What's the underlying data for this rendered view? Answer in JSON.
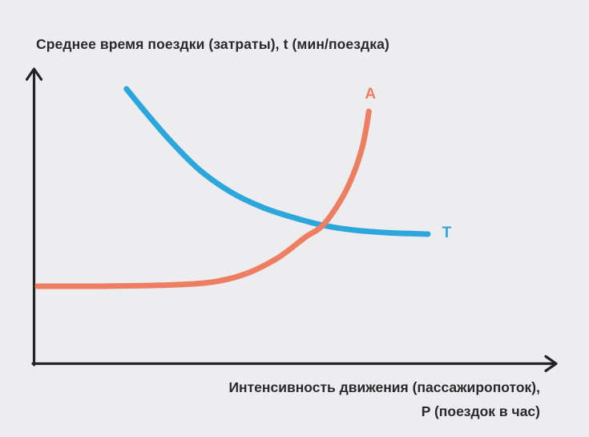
{
  "page": {
    "background": "#EDEDEF"
  },
  "colors": {
    "axis": "#232326",
    "text": "#2A2A2C",
    "curve_T": "#2BA7DD",
    "curve_A": "#EE7E62"
  },
  "chart_data": {
    "type": "line",
    "title": "Среднее время поездки (затраты), t (мин/поездка)",
    "x_axis_label_lines": [
      "Интенсивность движения (пассажиропоток),",
      "P (поездок в час)"
    ],
    "axes": {
      "ticks": "none",
      "gridlines": false,
      "qualitative": true,
      "x_range_unit": [
        0,
        1
      ],
      "y_range_unit": [
        0,
        1
      ]
    },
    "series": [
      {
        "name": "T",
        "color": "#2BA7DD",
        "description": "убывающая выпуклая кривая, выравнивается вправо",
        "label_pos": [
          0.789,
          0.443
        ],
        "points": [
          [
            0.176,
            0.93
          ],
          [
            0.218,
            0.84
          ],
          [
            0.262,
            0.751
          ],
          [
            0.316,
            0.656
          ],
          [
            0.377,
            0.58
          ],
          [
            0.439,
            0.528
          ],
          [
            0.5,
            0.493
          ],
          [
            0.552,
            0.469
          ],
          [
            0.61,
            0.453
          ],
          [
            0.676,
            0.444
          ],
          [
            0.753,
            0.439
          ]
        ]
      },
      {
        "name": "A",
        "color": "#EE7E62",
        "description": "плоская слева, затем резко возрастающая (экспоненциальная) кривая",
        "label_pos": [
          0.643,
          0.911
        ],
        "points": [
          [
            0.006,
            0.263
          ],
          [
            0.118,
            0.263
          ],
          [
            0.241,
            0.266
          ],
          [
            0.336,
            0.276
          ],
          [
            0.403,
            0.304
          ],
          [
            0.465,
            0.358
          ],
          [
            0.518,
            0.428
          ],
          [
            0.552,
            0.469
          ],
          [
            0.587,
            0.556
          ],
          [
            0.61,
            0.64
          ],
          [
            0.626,
            0.724
          ],
          [
            0.635,
            0.797
          ],
          [
            0.64,
            0.854
          ]
        ]
      }
    ]
  }
}
